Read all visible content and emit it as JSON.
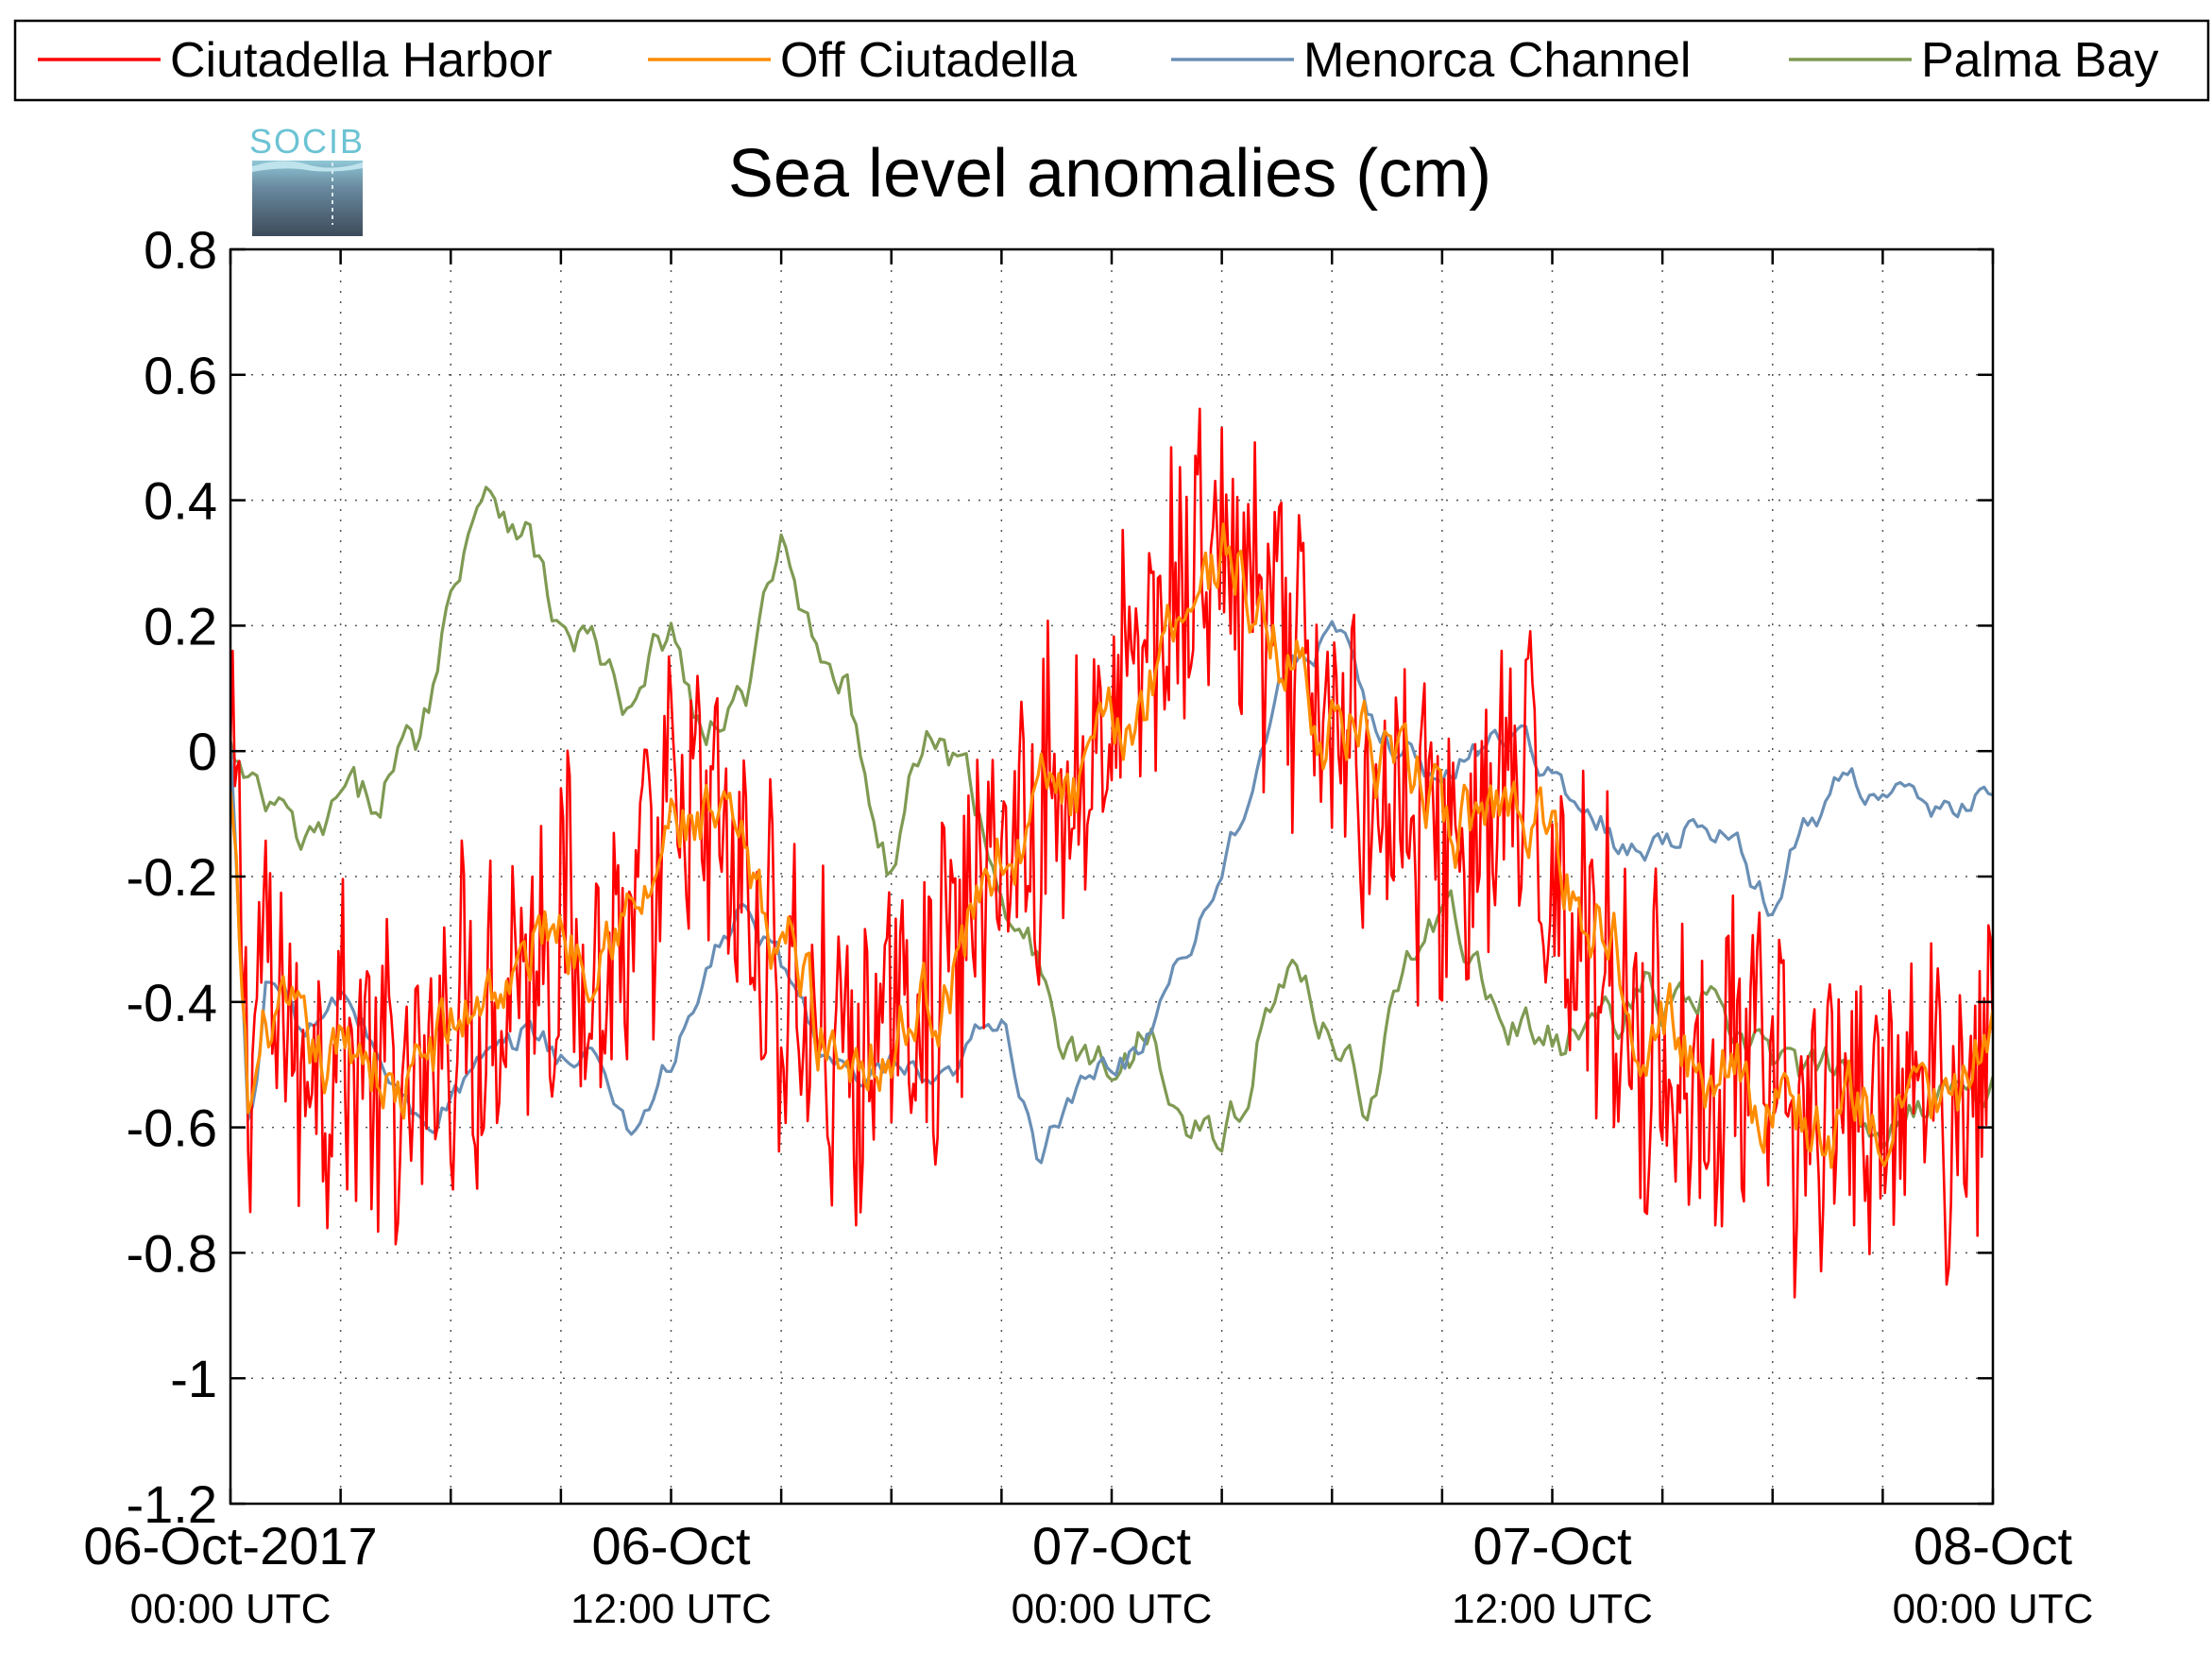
{
  "chart_data": {
    "type": "line",
    "title": "Sea level anomalies (cm)",
    "logo_text": "SOCIB",
    "xlabel": "",
    "ylabel": "",
    "ylim": [
      -1.2,
      0.8
    ],
    "yticks": [
      "0.8",
      "0.6",
      "0.4",
      "0.2",
      "0",
      "-0.2",
      "-0.4",
      "-0.6",
      "-0.8",
      "-1",
      "-1.2"
    ],
    "x_range_hours": [
      0,
      48
    ],
    "x_major_labels": [
      {
        "hours": 0,
        "date": "06-Oct-2017",
        "time": "00:00 UTC"
      },
      {
        "hours": 12,
        "date": "06-Oct",
        "time": "12:00 UTC"
      },
      {
        "hours": 24,
        "date": "07-Oct",
        "time": "00:00 UTC"
      },
      {
        "hours": 36,
        "date": "07-Oct",
        "time": "12:00 UTC"
      },
      {
        "hours": 48,
        "date": "08-Oct",
        "time": "00:00 UTC"
      }
    ],
    "grid": true,
    "legend_position": "top",
    "series": [
      {
        "name": "Ciutadella Harbor",
        "color": "#ff0000",
        "noise": 0.22,
        "x": [
          0,
          0.5,
          1,
          1.5,
          2,
          3,
          4,
          5,
          6,
          7,
          8,
          9,
          10,
          11,
          12,
          13,
          14,
          15,
          16,
          17,
          18,
          19,
          20,
          21,
          22,
          23,
          24,
          25,
          26,
          27,
          28,
          29,
          30,
          31,
          32,
          33,
          34,
          35,
          36,
          37,
          38,
          39,
          40,
          41,
          42,
          43,
          44,
          45,
          46,
          47,
          48
        ],
        "y": [
          -0.05,
          -0.45,
          -0.35,
          -0.45,
          -0.5,
          -0.45,
          -0.52,
          -0.6,
          -0.4,
          -0.42,
          -0.32,
          -0.28,
          -0.35,
          -0.3,
          -0.12,
          -0.1,
          -0.25,
          -0.38,
          -0.45,
          -0.52,
          -0.42,
          -0.4,
          -0.28,
          -0.15,
          -0.1,
          -0.05,
          0.05,
          0.15,
          0.28,
          0.32,
          0.22,
          0.12,
          0.02,
          -0.02,
          -0.1,
          -0.15,
          -0.15,
          -0.05,
          -0.2,
          -0.3,
          -0.4,
          -0.5,
          -0.55,
          -0.5,
          -0.55,
          -0.6,
          -0.6,
          -0.58,
          -0.55,
          -0.55,
          -0.5
        ]
      },
      {
        "name": "Off Ciutadella",
        "color": "#ff8c00",
        "noise": 0.05,
        "x": [
          0,
          0.5,
          1,
          1.5,
          2,
          3,
          4,
          5,
          6,
          7,
          8,
          9,
          10,
          11,
          12,
          13,
          14,
          15,
          16,
          17,
          18,
          19,
          20,
          21,
          22,
          23,
          24,
          25,
          26,
          27,
          28,
          29,
          30,
          31,
          32,
          33,
          34,
          35,
          36,
          37,
          38,
          39,
          40,
          41,
          42,
          43,
          44,
          45,
          46,
          47,
          48
        ],
        "y": [
          -0.1,
          -0.6,
          -0.4,
          -0.45,
          -0.5,
          -0.47,
          -0.5,
          -0.55,
          -0.42,
          -0.4,
          -0.33,
          -0.28,
          -0.3,
          -0.25,
          -0.15,
          -0.1,
          -0.2,
          -0.3,
          -0.42,
          -0.5,
          -0.45,
          -0.42,
          -0.3,
          -0.15,
          -0.1,
          -0.05,
          0.0,
          0.12,
          0.25,
          0.32,
          0.22,
          0.12,
          0.05,
          0.0,
          -0.05,
          -0.1,
          -0.12,
          -0.05,
          -0.15,
          -0.25,
          -0.35,
          -0.45,
          -0.5,
          -0.5,
          -0.55,
          -0.6,
          -0.6,
          -0.58,
          -0.55,
          -0.55,
          -0.5
        ]
      },
      {
        "name": "Menorca Channel",
        "color": "#6a8fb5",
        "noise": 0.02,
        "x": [
          0,
          0.5,
          1,
          1.5,
          2,
          3,
          4,
          5,
          6,
          7,
          8,
          9,
          10,
          11,
          12,
          13,
          14,
          15,
          16,
          17,
          18,
          19,
          20,
          21,
          22,
          23,
          24,
          25,
          26,
          27,
          28,
          29,
          30,
          31,
          32,
          33,
          34,
          35,
          36,
          37,
          38,
          39,
          40,
          41,
          42,
          43,
          44,
          45,
          46,
          47,
          48
        ],
        "y": [
          0.0,
          -0.6,
          -0.35,
          -0.4,
          -0.45,
          -0.4,
          -0.47,
          -0.6,
          -0.55,
          -0.5,
          -0.45,
          -0.48,
          -0.5,
          -0.6,
          -0.5,
          -0.35,
          -0.25,
          -0.35,
          -0.45,
          -0.55,
          -0.5,
          -0.55,
          -0.5,
          -0.4,
          -0.65,
          -0.55,
          -0.5,
          -0.45,
          -0.3,
          -0.2,
          0.0,
          0.15,
          0.2,
          0.05,
          0.0,
          -0.05,
          0.0,
          0.05,
          -0.05,
          -0.1,
          -0.15,
          -0.15,
          -0.1,
          -0.15,
          -0.25,
          -0.1,
          -0.05,
          -0.05,
          -0.1,
          -0.1,
          -0.05
        ]
      },
      {
        "name": "Palma Bay",
        "color": "#7f9a53",
        "noise": 0.03,
        "x": [
          0,
          1,
          2,
          3,
          4,
          5,
          6,
          7,
          8,
          9,
          10,
          11,
          12,
          13,
          14,
          15,
          16,
          17,
          18,
          19,
          20,
          21,
          22,
          23,
          24,
          25,
          26,
          27,
          28,
          29,
          30,
          31,
          32,
          33,
          34,
          35,
          36,
          37,
          38,
          39,
          40,
          41,
          42,
          43,
          44,
          45,
          46,
          47,
          48
        ],
        "y": [
          0.0,
          -0.1,
          -0.15,
          -0.1,
          -0.05,
          0.0,
          0.25,
          0.45,
          0.35,
          0.2,
          0.15,
          0.05,
          0.2,
          0.0,
          0.1,
          0.3,
          0.2,
          0.05,
          -0.2,
          0.05,
          -0.05,
          -0.2,
          -0.35,
          -0.5,
          -0.5,
          -0.45,
          -0.55,
          -0.65,
          -0.45,
          -0.35,
          -0.45,
          -0.55,
          -0.35,
          -0.25,
          -0.35,
          -0.45,
          -0.45,
          -0.45,
          -0.4,
          -0.4,
          -0.4,
          -0.45,
          -0.5,
          -0.5,
          -0.55,
          -0.6,
          -0.55,
          -0.55,
          -0.5
        ]
      }
    ]
  }
}
